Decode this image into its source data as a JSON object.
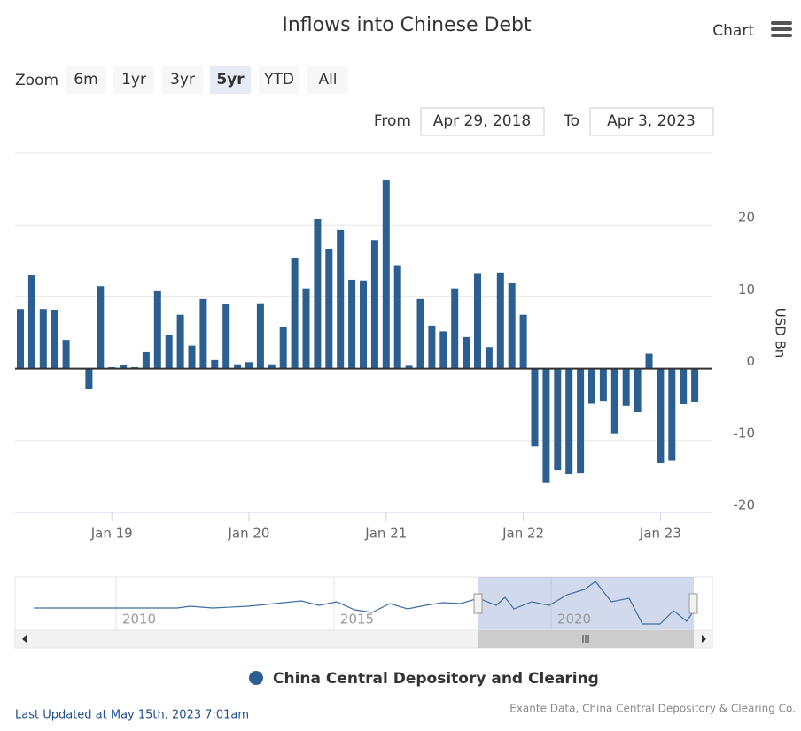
{
  "chart_data": {
    "type": "bar",
    "title": "Inflows into Chinese Debt",
    "menu": "Chart",
    "zoom": {
      "label": "Zoom",
      "buttons": [
        "6m",
        "1yr",
        "3yr",
        "5yr",
        "YTD",
        "All"
      ],
      "selected": "5yr"
    },
    "range": {
      "from_label": "From",
      "from": "Apr 29, 2018",
      "to_label": "To",
      "to": "Apr 3, 2023"
    },
    "y_label": "USD Bn",
    "x": [
      "2018-05",
      "2018-06",
      "2018-07",
      "2018-08",
      "2018-09",
      "2018-10",
      "2018-11",
      "2018-12",
      "2019-01",
      "2019-02",
      "2019-03",
      "2019-04",
      "2019-05",
      "2019-06",
      "2019-07",
      "2019-08",
      "2019-09",
      "2019-10",
      "2019-11",
      "2019-12",
      "2020-01",
      "2020-02",
      "2020-03",
      "2020-04",
      "2020-05",
      "2020-06",
      "2020-07",
      "2020-08",
      "2020-09",
      "2020-10",
      "2020-11",
      "2020-12",
      "2021-01",
      "2021-02",
      "2021-03",
      "2021-04",
      "2021-05",
      "2021-06",
      "2021-07",
      "2021-08",
      "2021-09",
      "2021-10",
      "2021-11",
      "2021-12",
      "2022-01",
      "2022-02",
      "2022-03",
      "2022-04",
      "2022-05",
      "2022-06",
      "2022-07",
      "2022-08",
      "2022-09",
      "2022-10",
      "2022-11",
      "2022-12",
      "2023-01",
      "2023-02",
      "2023-03",
      "2023-04"
    ],
    "series": [
      {
        "name": "China Central Depository and Clearing",
        "color": "#2b5f91",
        "values": [
          8.3,
          13,
          8.3,
          8.2,
          4,
          0.1,
          -2.8,
          11.5,
          0.2,
          0.5,
          0.2,
          2.3,
          10.8,
          4.7,
          7.5,
          3.2,
          9.7,
          1.2,
          9,
          0.6,
          0.9,
          9.1,
          0.6,
          5.8,
          15.4,
          11.2,
          20.8,
          16.7,
          19.3,
          12.4,
          12.3,
          17.9,
          26.3,
          14.3,
          0.4,
          9.7,
          6,
          5.2,
          11.2,
          4.4,
          13.2,
          3,
          13.4,
          11.9,
          7.5,
          -10.8,
          -15.9,
          -14.1,
          -14.7,
          -14.6,
          -4.8,
          -4.5,
          -9,
          -5.2,
          -6,
          2.1,
          -13.1,
          -12.8,
          -4.9,
          -4.6
        ]
      }
    ],
    "ylim": [
      -20,
      30
    ],
    "yticks": [
      -20,
      -10,
      0,
      10,
      20
    ],
    "xticks": [
      {
        "value": "2019-01",
        "label": "Jan 19"
      },
      {
        "value": "2020-01",
        "label": "Jan 20"
      },
      {
        "value": "2021-01",
        "label": "Jan 21"
      },
      {
        "value": "2022-01",
        "label": "Jan 22"
      },
      {
        "value": "2023-01",
        "label": "Jan 23"
      }
    ],
    "grid": true,
    "navigator_labels": [
      "2010",
      "2015",
      "2020"
    ],
    "last_updated": "Last Updated at May 15th, 2023 7:01am",
    "credits": "Exante Data, China Central Depository & Clearing Co."
  }
}
